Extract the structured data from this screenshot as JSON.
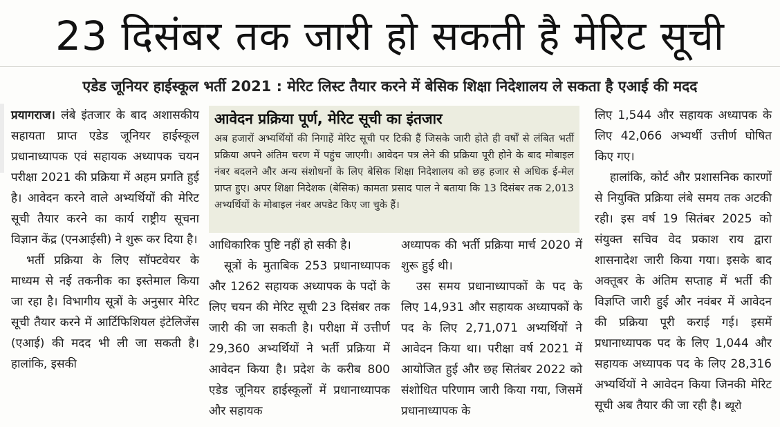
{
  "headline": "23 दिसंबर तक जारी हो सकती है मेरिट सूची",
  "subheadline": "एडेड जूनियर हाईस्कूल भर्ती 2021 : मेरिट लिस्ट तैयार करने में बेसिक शिक्षा निदेशालय ले सकता है एआई की मदद",
  "column1": {
    "dateline": "प्रयागराज।",
    "p1": "लंबे इंतजार के बाद अशासकीय सहायता प्राप्त एडेड जूनियर हाईस्कूल प्रधानाध्यापक एवं सहायक अध्यापक चयन परीक्षा 2021 की प्रक्रिया में अहम प्रगति हुई है। आवेदन करने वाले अभ्यर्थियों की मेरिट सूची तैयार करने का कार्य राष्ट्रीय सूचना विज्ञान केंद्र (एनआईसी) ने शुरू कर दिया है।",
    "p2": "भर्ती प्रक्रिया के लिए सॉफ्टवेयर के माध्यम से नई तकनीक का इस्तेमाल किया जा रहा है। विभागीय सूत्रों के अनुसार मेरिट सूची तैयार करने में आर्टिफिशियल इंटेलिजेंस (एआई) की मदद भी ली जा सकती है। हालांकि, इसकी"
  },
  "box": {
    "title": "आवेदन प्रक्रिया पूर्ण, मेरिट सूची का इंतजार",
    "body": "अब हजारों अभ्यर्थियों की निगाहें मेरिट सूची पर टिकी हैं जिसके जारी होते ही वर्षों से लंबित भर्ती प्रक्रिया अपने अंतिम चरण में पहुंच जाएगी। आवेदन पत्र लेने की प्रक्रिया पूरी होने के बाद मोबाइल नंबर बदलने और अन्य संशोधनों के लिए बेसिक शिक्षा निदेशालय को छह हजार से अधिक ई-मेल प्राप्त हुए। अपर शिक्षा निदेशक (बेसिक) कामता प्रसाद पाल ने बताया कि 13 दिसंबर तक 2,013 अभ्यर्थियों के मोबाइल नंबर अपडेट किए जा चुके हैं।"
  },
  "column2": {
    "p1": "आधिकारिक पुष्टि नहीं हो सकी है।",
    "p2": "सूत्रों के मुताबिक 253 प्रधानाध्यापक और 1262 सहायक अध्यापक के पदों के लिए चयन की मेरिट सूची 23 दिसंबर तक जारी की जा सकती है। परीक्षा में उत्तीर्ण 29,360 अभ्यर्थियों ने भर्ती प्रक्रिया में आवेदन किया है। प्रदेश के करीब 800 एडेड जूनियर हाईस्कूलों में प्रधानाध्यापक और सहायक"
  },
  "column3": {
    "p1": "अध्यापक की भर्ती प्रक्रिया मार्च 2020 में शुरू हुई थी।",
    "p2": "उस समय प्रधानाध्यापकों के पद के लिए 14,931 और सहायक अध्यापकों के पद के लिए 2,71,071 अभ्यर्थियों ने आवेदन किया था। परीक्षा वर्ष 2021 में आयोजित हुई और छह सितंबर 2022 को संशोधित परिणाम जारी किया गया, जिसमें प्रधानाध्यापक के"
  },
  "column4": {
    "p1": "लिए 1,544 और सहायक अध्यापक के लिए 42,066 अभ्यर्थी उत्तीर्ण घोषित किए गए।",
    "p2": "हालांकि, कोर्ट और प्रशासनिक कारणों से नियुक्ति प्रक्रिया लंबे समय तक अटकी रही। इस वर्ष 19 सितंबर 2025 को संयुक्त सचिव वेद प्रकाश राय द्वारा शासनादेश जारी किया गया। इसके बाद अक्तूबर के अंतिम सप्ताह में भर्ती की विज्ञप्ति जारी हुई और नवंबर में आवेदन की प्रक्रिया पूरी कराई गई। इसमें प्रधानाध्यापक पद के लिए 1,044 और सहायक अध्यापक पद के लिए 28,316 अभ्यर्थियों ने आवेदन किया जिनकी मेरिट सूची अब तैयार की जा रही है।",
    "byline": "ब्यूरो"
  },
  "colors": {
    "box_background": "#ecede0",
    "text": "#1a1a1a"
  }
}
